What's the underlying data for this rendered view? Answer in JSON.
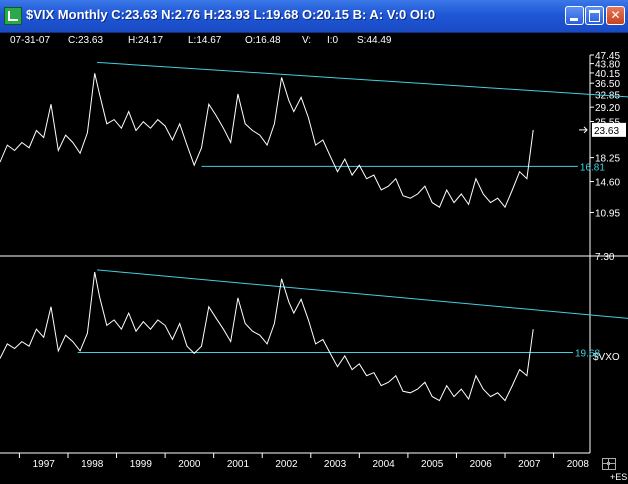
{
  "window": {
    "title": "$VIX Monthly C:23.63 N:2.76 H:23.93 L:19.68 O:20.15 B: A: V:0 OI:0",
    "buttons": {
      "minimize": "minimize-icon",
      "maximize": "maximize-icon",
      "close": "close-icon"
    }
  },
  "readout": {
    "date": "07-31-07",
    "close": "C:23.63",
    "high": "H:24.17",
    "low": "L:14.67",
    "open": "O:16.48",
    "volume": "V:",
    "oi": "I:0",
    "s": "S:44.49"
  },
  "colors": {
    "background": "#000000",
    "price_line": "#ffffff",
    "trendline": "#40d0e0",
    "titlebar": "#1f57d6"
  },
  "chart_data": {
    "type": "line",
    "x_ticks": [
      "1997",
      "1998",
      "1999",
      "2000",
      "2001",
      "2002",
      "2003",
      "2004",
      "2005",
      "2006",
      "2007",
      "2008"
    ],
    "panels": [
      {
        "symbol": "$VIX",
        "scale": "log",
        "y_ticks": [
          "47.45",
          "43.80",
          "40.15",
          "36.50",
          "32.85",
          "29.20",
          "25.55",
          "18.25",
          "14.60",
          "10.95",
          "7.30"
        ],
        "ylim": [
          7.3,
          47.45
        ],
        "last_value_label": "23.63",
        "last_value": 23.63,
        "levels": [
          {
            "label": "16.81",
            "value": 16.81,
            "from": 2000.75,
            "to": 2008.5
          }
        ],
        "trendlines": [
          {
            "from": [
              1998.6,
              44.3
            ],
            "to": [
              2010.0,
              31.7
            ]
          }
        ]
      },
      {
        "symbol": "$VXO",
        "scale": "log",
        "ylim": [
          7.0,
          52.0
        ],
        "levels": [
          {
            "label": "19.68",
            "value": 19.68,
            "from": 1998.2,
            "to": 2008.4
          }
        ],
        "trendlines": [
          {
            "from": [
              1998.6,
              46.0
            ],
            "to": [
              2010.3,
              27.0
            ]
          }
        ]
      }
    ],
    "series": [
      {
        "name": "$VIX",
        "x": [
          1996.6,
          1996.75,
          1996.9,
          1997.05,
          1997.2,
          1997.35,
          1997.5,
          1997.65,
          1997.8,
          1997.95,
          1998.1,
          1998.25,
          1998.4,
          1998.55,
          1998.65,
          1998.8,
          1998.95,
          1999.1,
          1999.25,
          1999.4,
          1999.55,
          1999.7,
          1999.85,
          2000.0,
          2000.15,
          2000.3,
          2000.45,
          2000.6,
          2000.75,
          2000.9,
          2001.05,
          2001.2,
          2001.35,
          2001.5,
          2001.65,
          2001.8,
          2001.95,
          2002.1,
          2002.25,
          2002.4,
          2002.55,
          2002.65,
          2002.8,
          2002.95,
          2003.1,
          2003.25,
          2003.4,
          2003.55,
          2003.7,
          2003.85,
          2004.0,
          2004.15,
          2004.3,
          2004.45,
          2004.6,
          2004.75,
          2004.9,
          2005.05,
          2005.2,
          2005.35,
          2005.5,
          2005.65,
          2005.8,
          2005.95,
          2006.1,
          2006.25,
          2006.4,
          2006.55,
          2006.7,
          2006.85,
          2007.0,
          2007.15,
          2007.3,
          2007.45,
          2007.58
        ],
        "values": [
          17.5,
          20.5,
          19.5,
          21.0,
          20.0,
          23.5,
          22.0,
          30.0,
          19.5,
          22.5,
          21.0,
          19.0,
          23.0,
          40.0,
          33.0,
          25.0,
          26.0,
          24.0,
          28.0,
          23.5,
          25.5,
          24.0,
          26.0,
          24.5,
          21.5,
          25.0,
          20.5,
          17.0,
          20.0,
          30.0,
          27.0,
          24.0,
          21.0,
          33.0,
          25.0,
          23.5,
          22.5,
          20.5,
          25.0,
          38.5,
          31.0,
          28.0,
          32.0,
          26.5,
          20.5,
          21.5,
          18.5,
          16.0,
          18.0,
          15.5,
          17.0,
          15.0,
          15.5,
          13.5,
          14.0,
          15.0,
          12.8,
          12.5,
          13.0,
          14.0,
          12.0,
          11.5,
          13.5,
          12.0,
          13.0,
          11.8,
          15.0,
          13.0,
          12.0,
          12.5,
          11.5,
          13.5,
          16.0,
          15.0,
          23.63
        ]
      },
      {
        "name": "$VXO",
        "x": [
          1996.6,
          1996.75,
          1996.9,
          1997.05,
          1997.2,
          1997.35,
          1997.5,
          1997.65,
          1997.8,
          1997.95,
          1998.1,
          1998.25,
          1998.4,
          1998.55,
          1998.65,
          1998.8,
          1998.95,
          1999.1,
          1999.25,
          1999.4,
          1999.55,
          1999.7,
          1999.85,
          2000.0,
          2000.15,
          2000.3,
          2000.45,
          2000.6,
          2000.75,
          2000.9,
          2001.05,
          2001.2,
          2001.35,
          2001.5,
          2001.65,
          2001.8,
          2001.95,
          2002.1,
          2002.25,
          2002.4,
          2002.55,
          2002.65,
          2002.8,
          2002.95,
          2003.1,
          2003.25,
          2003.4,
          2003.55,
          2003.7,
          2003.85,
          2004.0,
          2004.15,
          2004.3,
          2004.45,
          2004.6,
          2004.75,
          2004.9,
          2005.05,
          2005.2,
          2005.35,
          2005.5,
          2005.65,
          2005.8,
          2005.95,
          2006.1,
          2006.25,
          2006.4,
          2006.55,
          2006.7,
          2006.85,
          2007.0,
          2007.15,
          2007.3,
          2007.45,
          2007.58
        ],
        "values": [
          18.5,
          21.5,
          20.5,
          22.0,
          21.0,
          25.0,
          23.0,
          31.5,
          20.0,
          23.5,
          22.0,
          20.0,
          24.0,
          45.0,
          35.0,
          26.0,
          27.5,
          25.0,
          29.5,
          24.5,
          27.0,
          25.0,
          27.5,
          26.0,
          22.5,
          26.5,
          21.0,
          19.5,
          21.0,
          31.5,
          28.0,
          25.0,
          22.0,
          34.5,
          26.5,
          24.5,
          23.5,
          21.5,
          26.5,
          42.0,
          33.0,
          29.5,
          34.0,
          27.5,
          21.5,
          22.5,
          19.5,
          17.0,
          19.0,
          16.5,
          17.5,
          15.5,
          16.0,
          14.0,
          14.5,
          15.5,
          13.2,
          13.0,
          13.5,
          14.5,
          12.5,
          12.0,
          14.0,
          12.5,
          13.5,
          12.2,
          15.5,
          13.5,
          12.5,
          13.0,
          12.0,
          14.0,
          16.5,
          15.5,
          25.0
        ]
      }
    ]
  },
  "status": {
    "symbol": "+ES",
    "tool_icon": "crosshair-icon"
  }
}
